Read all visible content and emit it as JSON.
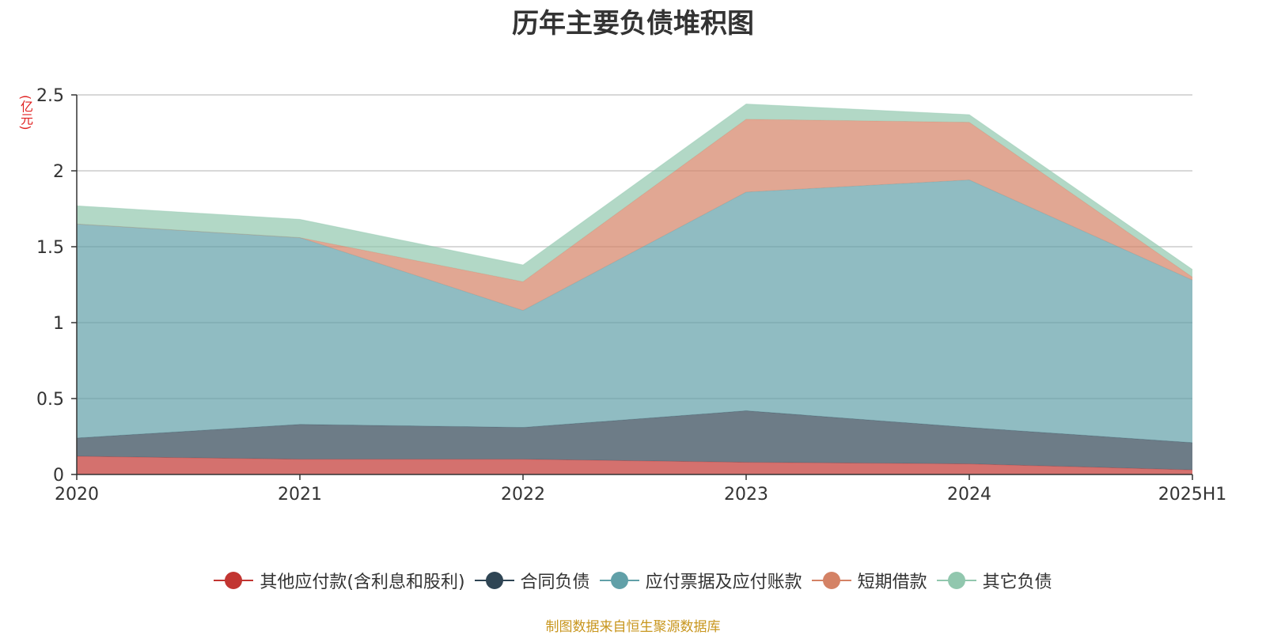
{
  "chart_data": {
    "type": "area",
    "stacked": true,
    "title": "历年主要负债堆积图",
    "ylabel": "(亿元)",
    "xlabel": "",
    "categories": [
      "2020",
      "2021",
      "2022",
      "2023",
      "2024",
      "2025H1"
    ],
    "yticks": [
      "0",
      "0.5",
      "1",
      "1.5",
      "2",
      "2.5"
    ],
    "ylim": [
      0,
      2.5
    ],
    "grid": true,
    "legend_position": "bottom-center",
    "series": [
      {
        "name": "其他应付款(含利息和股利)",
        "color": "#c23531",
        "values": [
          0.12,
          0.1,
          0.1,
          0.08,
          0.07,
          0.03
        ]
      },
      {
        "name": "合同负债",
        "color": "#2f4554",
        "values": [
          0.12,
          0.23,
          0.21,
          0.34,
          0.24,
          0.18
        ]
      },
      {
        "name": "应付票据及应付账款",
        "color": "#61a0a8",
        "values": [
          1.41,
          1.23,
          0.77,
          1.44,
          1.63,
          1.07
        ]
      },
      {
        "name": "短期借款",
        "color": "#d48265",
        "values": [
          0.0,
          0.0,
          0.19,
          0.48,
          0.38,
          0.02
        ]
      },
      {
        "name": "其它负债",
        "color": "#91c7ae",
        "values": [
          0.12,
          0.12,
          0.11,
          0.1,
          0.05,
          0.05
        ]
      }
    ]
  },
  "source_note": "制图数据来自恒生聚源数据库"
}
